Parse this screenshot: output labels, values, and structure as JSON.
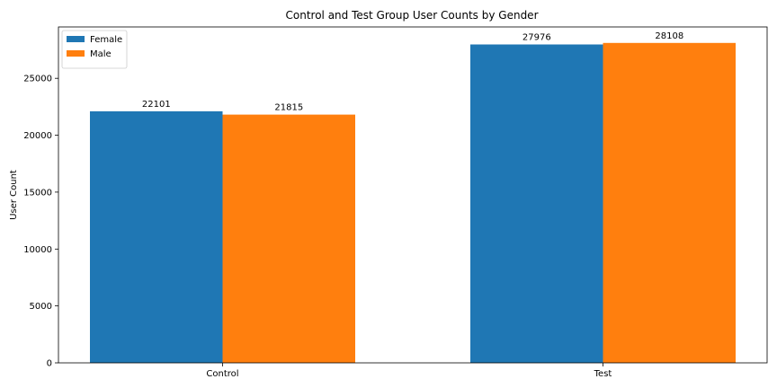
{
  "chart_data": {
    "type": "bar",
    "title": "Control and Test Group User Counts by Gender",
    "xlabel": "",
    "ylabel": "User Count",
    "categories": [
      "Control",
      "Test"
    ],
    "series": [
      {
        "name": "Female",
        "values": [
          22101,
          27976
        ],
        "color": "#1f77b4"
      },
      {
        "name": "Male",
        "values": [
          21815,
          28108
        ],
        "color": "#ff7f0e"
      }
    ],
    "ylim": [
      0,
      29514
    ],
    "yticks": [
      0,
      5000,
      10000,
      15000,
      20000,
      25000
    ],
    "grid": false,
    "legend_position": "top-left",
    "data_labels": true
  }
}
